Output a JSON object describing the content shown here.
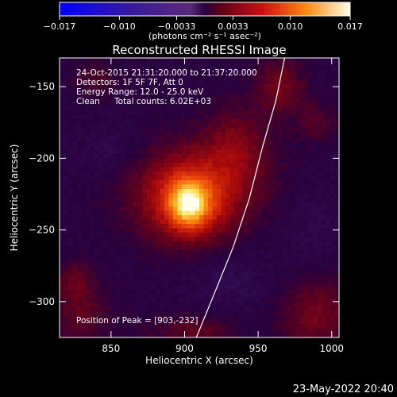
{
  "chart_data": {
    "type": "heatmap",
    "title": "Reconstructed RHESSI Image",
    "xlabel": "Heliocentric X (arcsec)",
    "ylabel": "Heliocentric Y (arcsec)",
    "xlim": [
      815,
      1005
    ],
    "ylim": [
      -325,
      -130
    ],
    "x_ticks": [
      850,
      900,
      950,
      1000
    ],
    "y_ticks": [
      -150,
      -200,
      -250,
      -300
    ],
    "colorbar": {
      "range": [
        -0.017,
        0.017
      ],
      "tick_values": [
        -0.017,
        -0.01,
        -0.0033,
        0.0033,
        0.01,
        0.017
      ],
      "tick_labels": [
        "−0.017",
        "−0.010",
        "−0.0033",
        "0.0033",
        "0.010",
        "0.017"
      ],
      "unit_label": "(photons cm⁻² s⁻¹ asec⁻²)"
    },
    "annotations": [
      "24-Oct-2015 21:31:20.000 to 21:37:20.000",
      "Detectors: 1F 5F 7F, Att 0",
      "Energy Range: 12.0 - 25.0 keV",
      "Clean",
      "Total counts: 6.02E+03"
    ],
    "peak": {
      "x": 903,
      "y": -232,
      "label": "Position of Peak = [903,-232]"
    },
    "limb_line": [
      [
        908,
        -325
      ],
      [
        920,
        -295
      ],
      [
        933,
        -262
      ],
      [
        944,
        -228
      ],
      [
        953,
        -192
      ],
      [
        962,
        -160
      ],
      [
        968,
        -130
      ]
    ],
    "blobs": [
      {
        "x": 903,
        "y": -232,
        "sx": 9,
        "sy": 11,
        "amp": 0.009
      },
      {
        "x": 903,
        "y": -232,
        "sx": 22,
        "sy": 20,
        "amp": 0.0075
      },
      {
        "x": 910,
        "y": -215,
        "sx": 35,
        "sy": 22,
        "amp": 0.0035
      },
      {
        "x": 935,
        "y": -190,
        "sx": 15,
        "sy": 20,
        "amp": 0.0035
      },
      {
        "x": 965,
        "y": -150,
        "sx": 12,
        "sy": 14,
        "amp": 0.004
      },
      {
        "x": 990,
        "y": -175,
        "sx": 10,
        "sy": 10,
        "amp": 0.0025
      },
      {
        "x": 840,
        "y": -145,
        "sx": 10,
        "sy": 8,
        "amp": 0.0025
      },
      {
        "x": 990,
        "y": -310,
        "sx": 18,
        "sy": 18,
        "amp": 0.004
      },
      {
        "x": 830,
        "y": -310,
        "sx": 14,
        "sy": 14,
        "amp": 0.003
      },
      {
        "x": 905,
        "y": -320,
        "sx": 20,
        "sy": 8,
        "amp": 0.003
      },
      {
        "x": 825,
        "y": -285,
        "sx": 10,
        "sy": 10,
        "amp": 0.003
      },
      {
        "x": 850,
        "y": -195,
        "sx": 16,
        "sy": 12,
        "amp": -0.0015
      },
      {
        "x": 930,
        "y": -285,
        "sx": 18,
        "sy": 14,
        "amp": -0.0015
      },
      {
        "x": 985,
        "y": -245,
        "sx": 12,
        "sy": 20,
        "amp": -0.0012
      }
    ]
  },
  "footer": {
    "timestamp": "23-May-2022 20:40"
  }
}
